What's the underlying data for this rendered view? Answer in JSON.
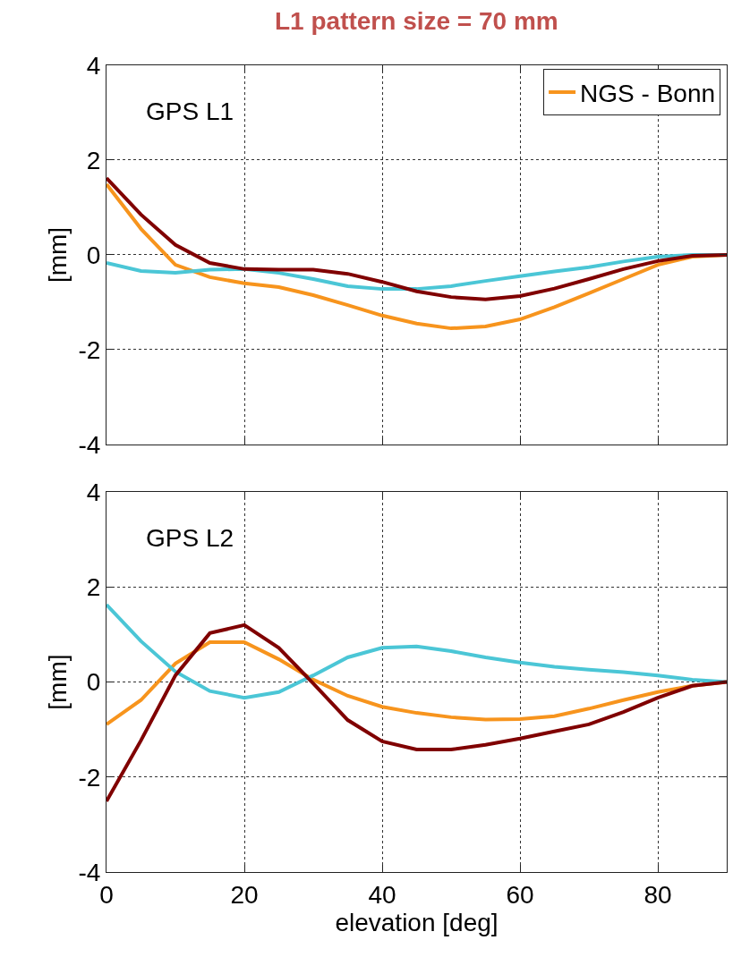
{
  "chart_data": [
    {
      "type": "line",
      "title": "L1 pattern size = 70 mm",
      "ylabel": "[mm]",
      "annotations": [
        "GPS L1"
      ],
      "x": [
        0,
        5,
        10,
        15,
        20,
        25,
        30,
        35,
        40,
        45,
        50,
        55,
        60,
        65,
        70,
        75,
        80,
        85,
        90
      ],
      "xlim": [
        0,
        90
      ],
      "xticks": [
        0,
        20,
        40,
        60,
        80
      ],
      "ylim": [
        -4,
        4
      ],
      "yticks": [
        -4,
        -2,
        0,
        2,
        4
      ],
      "grid": true,
      "legend": "top right",
      "tick_labels": "y",
      "series": [
        {
          "name": "NGS - Bonn",
          "color": "#f7941d",
          "values": [
            1.49,
            0.55,
            -0.21,
            -0.47,
            -0.6,
            -0.68,
            -0.85,
            -1.06,
            -1.28,
            -1.45,
            -1.55,
            -1.51,
            -1.36,
            -1.1,
            -0.81,
            -0.51,
            -0.21,
            -0.04,
            0
          ]
        },
        {
          "color": "#4bc6d6",
          "values": [
            -0.17,
            -0.34,
            -0.38,
            -0.31,
            -0.3,
            -0.38,
            -0.51,
            -0.66,
            -0.72,
            -0.72,
            -0.66,
            -0.55,
            -0.45,
            -0.35,
            -0.26,
            -0.14,
            -0.04,
            0,
            0
          ]
        },
        {
          "color": "#800000",
          "values": [
            1.62,
            0.85,
            0.21,
            -0.17,
            -0.3,
            -0.31,
            -0.31,
            -0.4,
            -0.57,
            -0.77,
            -0.89,
            -0.94,
            -0.87,
            -0.71,
            -0.51,
            -0.3,
            -0.13,
            -0.02,
            0
          ]
        }
      ]
    },
    {
      "type": "line",
      "ylabel": "[mm]",
      "xlabel": "elevation [deg]",
      "annotations": [
        "GPS L2"
      ],
      "x": [
        0,
        5,
        10,
        15,
        20,
        25,
        30,
        35,
        40,
        45,
        50,
        55,
        60,
        65,
        70,
        75,
        80,
        85,
        90
      ],
      "xlim": [
        0,
        90
      ],
      "xticks": [
        0,
        20,
        40,
        60,
        80
      ],
      "ylim": [
        -4,
        4
      ],
      "yticks": [
        -4,
        -2,
        0,
        2,
        4
      ],
      "grid": true,
      "series": [
        {
          "color": "#f7941d",
          "values": [
            -0.89,
            -0.38,
            0.39,
            0.84,
            0.84,
            0.48,
            0.05,
            -0.29,
            -0.52,
            -0.65,
            -0.74,
            -0.79,
            -0.78,
            -0.72,
            -0.56,
            -0.38,
            -0.21,
            -0.08,
            0
          ]
        },
        {
          "color": "#4bc6d6",
          "values": [
            1.63,
            0.86,
            0.22,
            -0.19,
            -0.33,
            -0.21,
            0.14,
            0.52,
            0.72,
            0.75,
            0.65,
            0.52,
            0.41,
            0.32,
            0.26,
            0.21,
            0.14,
            0.05,
            0
          ]
        },
        {
          "color": "#800000",
          "values": [
            -2.51,
            -1.23,
            0.14,
            1.03,
            1.2,
            0.72,
            -0.03,
            -0.8,
            -1.25,
            -1.42,
            -1.42,
            -1.32,
            -1.19,
            -1.04,
            -0.89,
            -0.63,
            -0.33,
            -0.08,
            0
          ]
        }
      ]
    }
  ]
}
